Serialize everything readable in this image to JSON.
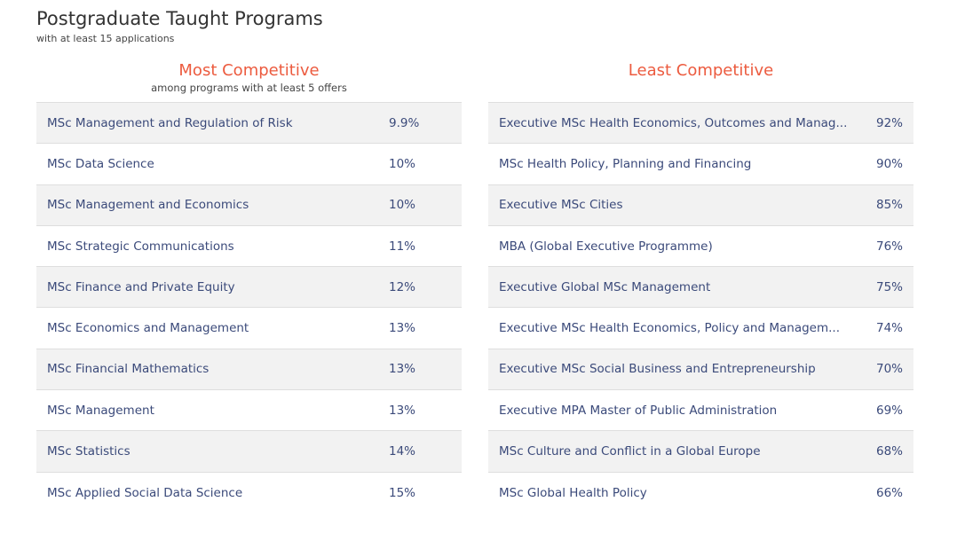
{
  "header": {
    "title": "Postgraduate Taught Programs",
    "subtitle": "with at least 15 applications"
  },
  "most_competitive": {
    "title": "Most Competitive",
    "subtitle": "among programs with at least 5 offers",
    "rows": [
      {
        "name": "MSc Management and Regulation of Risk",
        "value": "9.9%"
      },
      {
        "name": "MSc Data Science",
        "value": "10%"
      },
      {
        "name": "MSc Management and Economics",
        "value": "10%"
      },
      {
        "name": "MSc Strategic Communications",
        "value": "11%"
      },
      {
        "name": "MSc Finance and Private Equity",
        "value": "12%"
      },
      {
        "name": "MSc Economics and Management",
        "value": "13%"
      },
      {
        "name": "MSc Financial Mathematics",
        "value": "13%"
      },
      {
        "name": "MSc Management",
        "value": "13%"
      },
      {
        "name": "MSc Statistics",
        "value": "14%"
      },
      {
        "name": "MSc Applied Social Data Science",
        "value": "15%"
      }
    ]
  },
  "least_competitive": {
    "title": "Least Competitive",
    "rows": [
      {
        "name": "Executive MSc Health Economics, Outcomes and Manag...",
        "value": "92%"
      },
      {
        "name": "MSc Health Policy, Planning and Financing",
        "value": "90%"
      },
      {
        "name": "Executive MSc Cities",
        "value": "85%"
      },
      {
        "name": "MBA (Global Executive Programme)",
        "value": "76%"
      },
      {
        "name": "Executive Global MSc Management",
        "value": "75%"
      },
      {
        "name": "Executive MSc Health Economics, Policy and Managem...",
        "value": "74%"
      },
      {
        "name": "Executive MSc Social Business and Entrepreneurship",
        "value": "70%"
      },
      {
        "name": "Executive MPA Master of Public Administration",
        "value": "69%"
      },
      {
        "name": "MSc Culture and Conflict in a Global Europe",
        "value": "68%"
      },
      {
        "name": "MSc Global Health Policy",
        "value": "66%"
      }
    ]
  }
}
